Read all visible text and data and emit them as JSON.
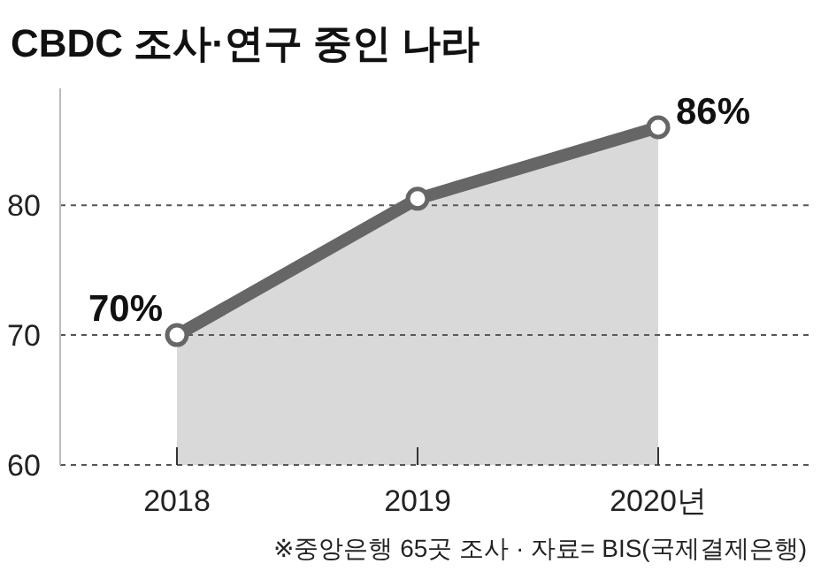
{
  "chart_data": {
    "type": "area",
    "title": "CBDC 조사·연구 중인 나라",
    "categories": [
      "2018",
      "2019",
      "2020년"
    ],
    "series": [
      {
        "color": "#666666",
        "values": [
          70,
          80.5,
          86
        ],
        "value_labels": [
          "70%",
          null,
          "86%"
        ]
      }
    ],
    "ylim": [
      60,
      89
    ],
    "yticks": [
      60,
      70,
      80
    ],
    "grid": "y",
    "marker": "circle",
    "annotations": [
      "※중앙은행 65곳 조사 · 자료= BIS(국제결제은행)"
    ]
  }
}
